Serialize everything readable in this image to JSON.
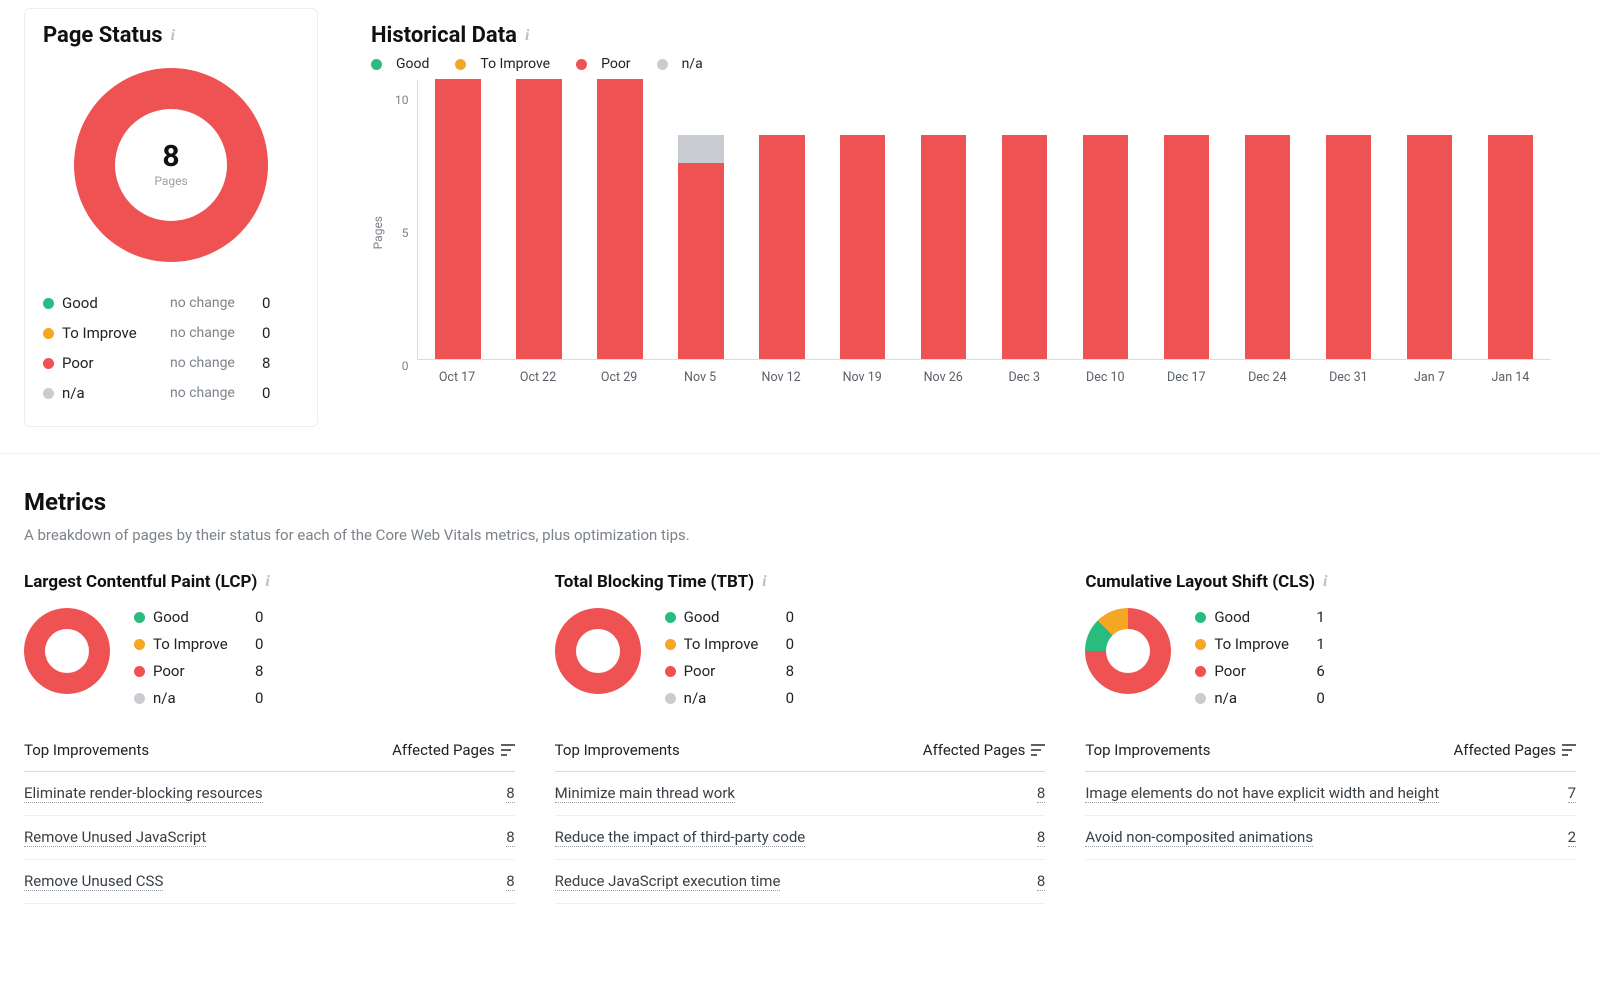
{
  "colors": {
    "good": "#2abb7f",
    "to_improve": "#f5a623",
    "poor": "#ee5253",
    "na": "#c9ccd1",
    "axis": "#d9dde1",
    "text_muted": "#7c838a"
  },
  "page_status": {
    "title": "Page Status",
    "donut": {
      "size": 194,
      "hole": 112,
      "center_value": "8",
      "center_label": "Pages",
      "slices": [
        {
          "key": "poor",
          "value": 8
        }
      ],
      "total": 8
    },
    "legend": [
      {
        "label": "Good",
        "color_key": "good",
        "change": "no change",
        "count": "0"
      },
      {
        "label": "To Improve",
        "color_key": "to_improve",
        "change": "no change",
        "count": "0"
      },
      {
        "label": "Poor",
        "color_key": "poor",
        "change": "no change",
        "count": "8"
      },
      {
        "label": "n/a",
        "color_key": "na",
        "change": "no change",
        "count": "0"
      }
    ]
  },
  "historical": {
    "title": "Historical Data",
    "ylabel": "Pages",
    "ymax": 10,
    "y_ticks": [
      "10",
      "5",
      "0"
    ],
    "legend": [
      "Good",
      "To Improve",
      "Poor",
      "n/a"
    ],
    "legend_colors": [
      "good",
      "to_improve",
      "poor",
      "na"
    ],
    "x_labels": [
      "Oct 17",
      "Oct 22",
      "Oct 29",
      "Nov 5",
      "Nov 12",
      "Nov 19",
      "Nov 26",
      "Dec 3",
      "Dec 10",
      "Dec 17",
      "Dec 24",
      "Dec 31",
      "Jan 7",
      "Jan 14"
    ],
    "bars": [
      {
        "poor": 10,
        "na": 0
      },
      {
        "poor": 10,
        "na": 0
      },
      {
        "poor": 10,
        "na": 0
      },
      {
        "poor": 7,
        "na": 1
      },
      {
        "poor": 8,
        "na": 0
      },
      {
        "poor": 8,
        "na": 0
      },
      {
        "poor": 8,
        "na": 0
      },
      {
        "poor": 8,
        "na": 0
      },
      {
        "poor": 8,
        "na": 0
      },
      {
        "poor": 8,
        "na": 0
      },
      {
        "poor": 8,
        "na": 0
      },
      {
        "poor": 8,
        "na": 0
      },
      {
        "poor": 8,
        "na": 0
      },
      {
        "poor": 8,
        "na": 0
      }
    ]
  },
  "metrics": {
    "title": "Metrics",
    "description": "A breakdown of pages by their status for each of the Core Web Vitals metrics, plus optimization tips.",
    "columns": [
      {
        "title": "Largest Contentful Paint (LCP)",
        "donut": {
          "size": 86,
          "hole": 44,
          "slices": [
            {
              "key": "poor",
              "value": 8
            }
          ],
          "total": 8
        },
        "legend": [
          {
            "label": "Good",
            "color_key": "good",
            "count": "0"
          },
          {
            "label": "To Improve",
            "color_key": "to_improve",
            "count": "0"
          },
          {
            "label": "Poor",
            "color_key": "poor",
            "count": "8"
          },
          {
            "label": "n/a",
            "color_key": "na",
            "count": "0"
          }
        ],
        "improvements_header_left": "Top Improvements",
        "improvements_header_right": "Affected Pages",
        "improvements": [
          {
            "name": "Eliminate render-blocking resources",
            "count": "8"
          },
          {
            "name": "Remove Unused JavaScript",
            "count": "8"
          },
          {
            "name": "Remove Unused CSS",
            "count": "8"
          }
        ]
      },
      {
        "title": "Total Blocking Time (TBT)",
        "donut": {
          "size": 86,
          "hole": 44,
          "slices": [
            {
              "key": "poor",
              "value": 8
            }
          ],
          "total": 8
        },
        "legend": [
          {
            "label": "Good",
            "color_key": "good",
            "count": "0"
          },
          {
            "label": "To Improve",
            "color_key": "to_improve",
            "count": "0"
          },
          {
            "label": "Poor",
            "color_key": "poor",
            "count": "8"
          },
          {
            "label": "n/a",
            "color_key": "na",
            "count": "0"
          }
        ],
        "improvements_header_left": "Top Improvements",
        "improvements_header_right": "Affected Pages",
        "improvements": [
          {
            "name": "Minimize main thread work",
            "count": "8"
          },
          {
            "name": "Reduce the impact of third-party code",
            "count": "8"
          },
          {
            "name": "Reduce JavaScript execution time",
            "count": "8"
          }
        ]
      },
      {
        "title": "Cumulative Layout Shift (CLS)",
        "donut": {
          "size": 86,
          "hole": 44,
          "slices": [
            {
              "key": "good",
              "value": 1
            },
            {
              "key": "to_improve",
              "value": 1
            },
            {
              "key": "poor",
              "value": 6
            }
          ],
          "total": 8
        },
        "legend": [
          {
            "label": "Good",
            "color_key": "good",
            "count": "1"
          },
          {
            "label": "To Improve",
            "color_key": "to_improve",
            "count": "1"
          },
          {
            "label": "Poor",
            "color_key": "poor",
            "count": "6"
          },
          {
            "label": "n/a",
            "color_key": "na",
            "count": "0"
          }
        ],
        "improvements_header_left": "Top Improvements",
        "improvements_header_right": "Affected Pages",
        "improvements": [
          {
            "name": "Image elements do not have explicit width and height",
            "count": "7"
          },
          {
            "name": "Avoid non-composited animations",
            "count": "2"
          }
        ]
      }
    ]
  }
}
